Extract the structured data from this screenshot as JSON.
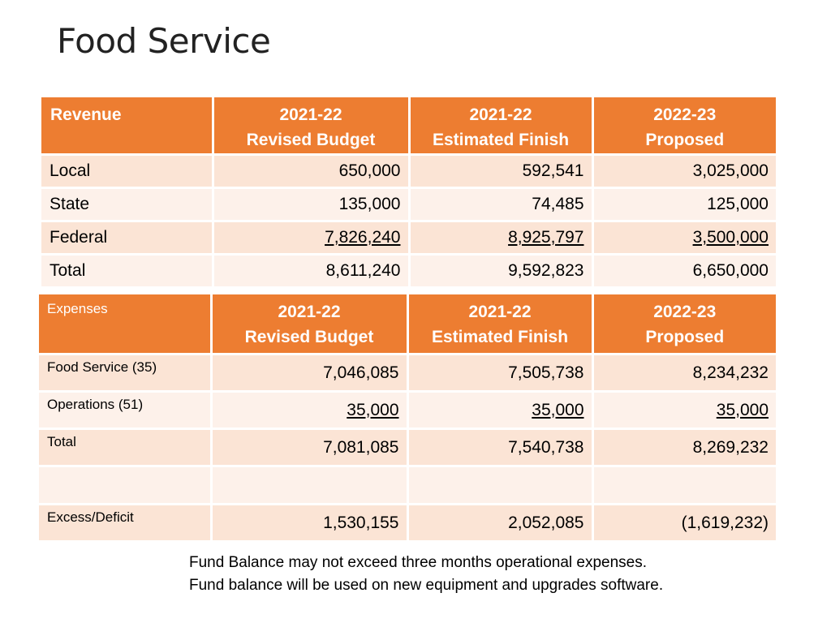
{
  "title": "Food Service",
  "revenue_table": {
    "headers": [
      {
        "line1": "Revenue",
        "line2": ""
      },
      {
        "line1": "2021-22",
        "line2": "Revised Budget"
      },
      {
        "line1": "2021-22",
        "line2": "Estimated Finish"
      },
      {
        "line1": "2022-23",
        "line2": "Proposed"
      }
    ],
    "rows": [
      {
        "label": "Local",
        "values": [
          "650,000",
          "592,541",
          "3,025,000"
        ]
      },
      {
        "label": "State",
        "values": [
          "135,000",
          "74,485",
          "125,000"
        ]
      },
      {
        "label": "Federal",
        "values": [
          "7,826,240",
          "8,925,797",
          "3,500,000"
        ]
      },
      {
        "label": "Total",
        "values": [
          "8,611,240",
          "9,592,823",
          "6,650,000"
        ]
      }
    ]
  },
  "expenses_table": {
    "headers": [
      {
        "line1": "Expenses",
        "line2": ""
      },
      {
        "line1": "2021-22",
        "line2": "Revised Budget"
      },
      {
        "line1": "2021-22",
        "line2": "Estimated Finish"
      },
      {
        "line1": "2022-23",
        "line2": "Proposed"
      }
    ],
    "rows": [
      {
        "label": "Food Service (35)",
        "values": [
          "7,046,085",
          "7,505,738",
          "8,234,232"
        ]
      },
      {
        "label": "Operations (51)",
        "values": [
          "35,000",
          "35,000",
          "35,000"
        ]
      },
      {
        "label": "Total",
        "values": [
          "7,081,085",
          "7,540,738",
          "8,269,232"
        ]
      },
      {
        "label": "",
        "values": [
          "",
          "",
          ""
        ]
      },
      {
        "label": "Excess/Deficit",
        "values": [
          "1,530,155",
          "2,052,085",
          "(1,619,232)"
        ]
      }
    ]
  },
  "notes": [
    "Fund Balance may not exceed three months operational expenses.",
    "Fund balance will be used on new equipment and upgrades software."
  ],
  "colors": {
    "header_bg": "#ED7D31",
    "row_dark": "#FBE4D5",
    "row_light": "#FDF1EA"
  }
}
